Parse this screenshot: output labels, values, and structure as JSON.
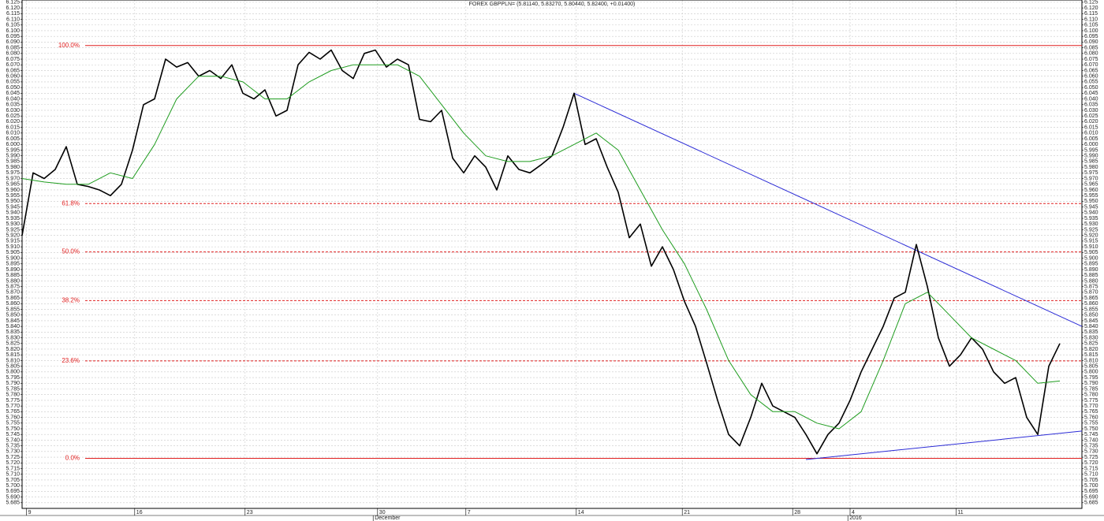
{
  "chart_data": {
    "type": "line",
    "title": "FOREX GBPPLN= (5.81140, 5.83270, 5.80440, 5.82400, +0.01400)",
    "xlim": [
      0,
      48
    ],
    "ylim": [
      5.68,
      6.127
    ],
    "grid": true,
    "xticks": [
      {
        "value": 0.2,
        "label": "9"
      },
      {
        "value": 5.1,
        "label": "16"
      },
      {
        "value": 10.1,
        "label": "23"
      },
      {
        "value": 16.1,
        "label": "30"
      },
      {
        "value": 20.1,
        "label": "7"
      },
      {
        "value": 25.1,
        "label": "14"
      },
      {
        "value": 29.9,
        "label": "21"
      },
      {
        "value": 34.9,
        "label": "28"
      },
      {
        "value": 37.5,
        "label": "4"
      },
      {
        "value": 42.3,
        "label": "11"
      }
    ],
    "xticks2": [
      {
        "value": 15.9,
        "label": "December"
      },
      {
        "value": 37.4,
        "label": "2016"
      }
    ],
    "yticks": [
      6.125,
      {
        "value": 6.12,
        "label": "6.120"
      },
      6.115,
      {
        "value": 6.11,
        "label": "6.110"
      },
      6.105,
      {
        "value": 6.1,
        "label": "6.100"
      },
      6.095,
      {
        "value": 6.09,
        "label": "6.090"
      },
      6.085,
      {
        "value": 6.08,
        "label": "6.080"
      },
      6.075,
      {
        "value": 6.07,
        "label": "6.070"
      },
      6.065,
      {
        "value": 6.06,
        "label": "6.060"
      },
      6.055,
      {
        "value": 6.05,
        "label": "6.050"
      },
      6.045,
      {
        "value": 6.04,
        "label": "6.040"
      },
      6.035,
      {
        "value": 6.03,
        "label": "6.030"
      },
      6.025,
      {
        "value": 6.02,
        "label": "6.020"
      },
      6.015,
      {
        "value": 6.01,
        "label": "6.010"
      },
      6.005,
      {
        "value": 6,
        "label": "6.000"
      },
      5.995,
      {
        "value": 5.99,
        "label": "5.990"
      },
      5.985,
      {
        "value": 5.98,
        "label": "5.980"
      },
      5.975,
      {
        "value": 5.97,
        "label": "5.970"
      },
      5.965,
      {
        "value": 5.96,
        "label": "5.960"
      },
      5.955,
      {
        "value": 5.95,
        "label": "5.950"
      },
      5.945,
      {
        "value": 5.94,
        "label": "5.940"
      },
      5.935,
      {
        "value": 5.93,
        "label": "5.930"
      },
      5.925,
      {
        "value": 5.92,
        "label": "5.920"
      },
      5.915,
      {
        "value": 5.91,
        "label": "5.910"
      },
      5.905,
      {
        "value": 5.9,
        "label": "5.900"
      },
      5.895,
      {
        "value": 5.89,
        "label": "5.890"
      },
      5.885,
      {
        "value": 5.88,
        "label": "5.880"
      },
      5.875,
      {
        "value": 5.87,
        "label": "5.870"
      },
      5.865,
      {
        "value": 5.86,
        "label": "5.860"
      },
      5.855,
      {
        "value": 5.85,
        "label": "5.850"
      },
      5.845,
      {
        "value": 5.84,
        "label": "5.840"
      },
      5.835,
      {
        "value": 5.83,
        "label": "5.830"
      },
      5.825,
      {
        "value": 5.82,
        "label": "5.820"
      },
      5.815,
      {
        "value": 5.81,
        "label": "5.810"
      },
      5.805,
      {
        "value": 5.8,
        "label": "5.800"
      },
      5.795,
      {
        "value": 5.79,
        "label": "5.790"
      },
      5.785,
      {
        "value": 5.78,
        "label": "5.780"
      },
      5.775,
      {
        "value": 5.77,
        "label": "5.770"
      },
      5.765,
      {
        "value": 5.76,
        "label": "5.760"
      },
      5.755,
      {
        "value": 5.75,
        "label": "5.750"
      },
      5.745,
      {
        "value": 5.74,
        "label": "5.740"
      },
      5.735,
      {
        "value": 5.73,
        "label": "5.730"
      },
      5.725,
      {
        "value": 5.72,
        "label": "5.720"
      },
      5.715,
      {
        "value": 5.71,
        "label": "5.710"
      },
      5.705,
      {
        "value": 5.7,
        "label": "5.700"
      },
      5.695,
      {
        "value": 5.69,
        "label": "5.690"
      },
      5.685
    ],
    "series": [
      {
        "color": "#000000",
        "width": 1.6,
        "x": [
          0,
          0.5,
          1,
          1.5,
          2,
          2.5,
          3,
          3.5,
          4,
          4.5,
          5,
          5.5,
          6,
          6.5,
          7,
          7.5,
          8,
          8.5,
          9,
          9.5,
          10,
          10.5,
          11,
          11.5,
          12,
          12.5,
          13,
          13.5,
          14,
          14.5,
          15,
          15.5,
          16,
          16.5,
          17,
          17.5,
          18,
          18.5,
          19,
          19.5,
          20,
          20.5,
          21,
          21.5,
          22,
          22.5,
          23,
          23.5,
          24,
          24.5,
          25,
          25.5,
          26,
          26.5,
          27,
          27.5,
          28,
          28.5,
          29,
          29.5,
          30,
          30.5,
          31,
          31.5,
          32,
          32.5,
          33,
          33.5,
          34,
          34.5,
          35,
          35.5,
          36,
          36.5,
          37,
          37.5,
          38,
          38.5,
          39,
          39.5,
          40,
          40.5,
          41,
          41.5,
          42,
          42.5,
          43,
          43.5,
          44,
          44.5,
          45,
          45.5,
          46,
          46.5,
          47
        ],
        "values": [
          5.92,
          5.975,
          5.97,
          5.978,
          5.998,
          5.965,
          5.963,
          5.96,
          5.955,
          5.965,
          5.995,
          6.035,
          6.04,
          6.075,
          6.068,
          6.072,
          6.06,
          6.065,
          6.058,
          6.07,
          6.045,
          6.04,
          6.048,
          6.025,
          6.03,
          6.07,
          6.081,
          6.075,
          6.083,
          6.065,
          6.058,
          6.08,
          6.083,
          6.068,
          6.075,
          6.07,
          6.022,
          6.02,
          6.03,
          5.988,
          5.975,
          5.99,
          5.98,
          5.96,
          5.99,
          5.978,
          5.975,
          5.982,
          5.99,
          6.015,
          6.045,
          6.0,
          6.005,
          5.98,
          5.958,
          5.918,
          5.93,
          5.893,
          5.91,
          5.89,
          5.862,
          5.84,
          5.808,
          5.775,
          5.745,
          5.735,
          5.76,
          5.79,
          5.77,
          5.765,
          5.76,
          5.745,
          5.728,
          5.745,
          5.755,
          5.775,
          5.8,
          5.82,
          5.84,
          5.865,
          5.87,
          5.912,
          5.875,
          5.83,
          5.805,
          5.815,
          5.83,
          5.82,
          5.8,
          5.79,
          5.795,
          5.76,
          5.745,
          5.805,
          5.825
        ]
      },
      {
        "color": "#1e9c1e",
        "width": 1,
        "x": [
          0,
          1,
          2,
          3,
          4,
          5,
          6,
          7,
          8,
          9,
          10,
          11,
          12,
          13,
          14,
          15,
          16,
          17,
          18,
          19,
          20,
          21,
          22,
          23,
          24,
          25,
          26,
          27,
          28,
          29,
          30,
          31,
          32,
          33,
          34,
          35,
          36,
          37,
          38,
          39,
          40,
          41,
          42,
          43,
          44,
          45,
          46,
          47
        ],
        "values": [
          5.97,
          5.967,
          5.965,
          5.965,
          5.975,
          5.97,
          6.0,
          6.04,
          6.06,
          6.06,
          6.055,
          6.04,
          6.04,
          6.055,
          6.065,
          6.07,
          6.07,
          6.07,
          6.06,
          6.035,
          6.01,
          5.99,
          5.985,
          5.985,
          5.99,
          6.0,
          6.01,
          5.995,
          5.96,
          5.925,
          5.895,
          5.855,
          5.81,
          5.78,
          5.765,
          5.765,
          5.755,
          5.75,
          5.765,
          5.81,
          5.86,
          5.87,
          5.85,
          5.83,
          5.82,
          5.81,
          5.79,
          5.792
        ]
      }
    ],
    "trendlines": [
      {
        "color": "#2b2bd6",
        "x": [
          25,
          48
        ],
        "values": [
          6.045,
          5.84
        ]
      },
      {
        "color": "#2b2bd6",
        "x": [
          35.5,
          48
        ],
        "values": [
          5.723,
          5.748
        ]
      }
    ],
    "levels": [
      {
        "label": "100.0%",
        "value": 6.087,
        "dashed": false
      },
      {
        "label": "61.8%",
        "value": 5.948,
        "dashed": true
      },
      {
        "label": "50.0%",
        "value": 5.9055,
        "dashed": true
      },
      {
        "label": "38.2%",
        "value": 5.8627,
        "dashed": true
      },
      {
        "label": "23.6%",
        "value": 5.8097,
        "dashed": true
      },
      {
        "label": "0.0%",
        "value": 5.724,
        "dashed": false
      }
    ],
    "level_color": "#e02020"
  }
}
